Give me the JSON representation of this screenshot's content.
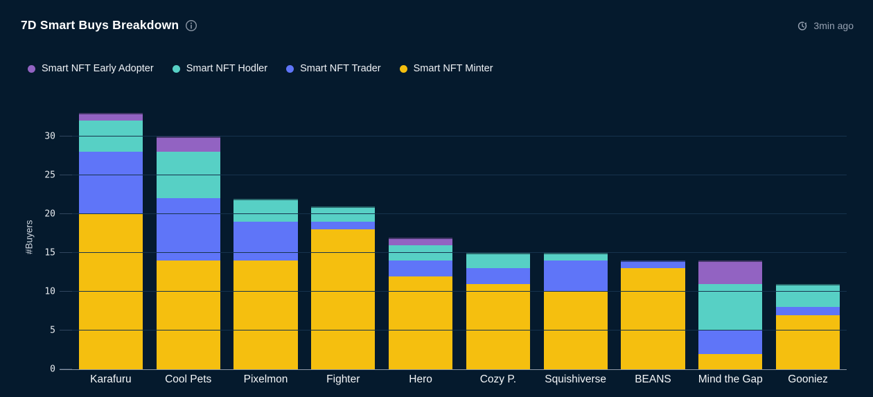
{
  "header": {
    "title": "7D Smart Buys Breakdown",
    "updated": "3min ago",
    "title_icon": "info-circle",
    "updated_icon": "clock-history"
  },
  "colors": {
    "background": "#051a2d",
    "grid": "#16334d",
    "axis_line": "#8f99a6",
    "early_adopter": "#9263c2",
    "hodler": "#57d0c5",
    "trader": "#5f75f8",
    "minter": "#f5bf0f"
  },
  "chart_data": {
    "type": "bar",
    "stacked": true,
    "title": "7D Smart Buys Breakdown",
    "xlabel": "",
    "ylabel": "#Buyers",
    "categories": [
      "Karafuru",
      "Cool Pets",
      "Pixelmon",
      "Fighter",
      "Hero",
      "Cozy P.",
      "Squishiverse",
      "BEANS",
      "Mind the Gap",
      "Gooniez"
    ],
    "series": [
      {
        "name": "Smart NFT Minter",
        "color": "#f5bf0f",
        "values": [
          20,
          14,
          14,
          18,
          12,
          11,
          10,
          13,
          2,
          7
        ]
      },
      {
        "name": "Smart NFT Trader",
        "color": "#5f75f8",
        "values": [
          8,
          8,
          5,
          1,
          2,
          2,
          4,
          1,
          3,
          1
        ]
      },
      {
        "name": "Smart NFT Hodler",
        "color": "#57d0c5",
        "values": [
          4,
          6,
          3,
          2,
          2,
          2,
          1,
          0,
          6,
          3
        ]
      },
      {
        "name": "Smart NFT Early Adopter",
        "color": "#9263c2",
        "values": [
          1,
          2,
          0,
          0,
          1,
          0,
          0,
          0,
          3,
          0
        ]
      }
    ],
    "totals": [
      33,
      30,
      22,
      21,
      17,
      15,
      15,
      14,
      14,
      11
    ],
    "yticks": [
      0,
      5,
      10,
      15,
      20,
      25,
      30
    ],
    "ylim": [
      0,
      34
    ],
    "grid": true,
    "legend_position": "top-left",
    "legend_order_top_first": [
      "Smart NFT Early Adopter",
      "Smart NFT Hodler",
      "Smart NFT Trader",
      "Smart NFT Minter"
    ]
  }
}
